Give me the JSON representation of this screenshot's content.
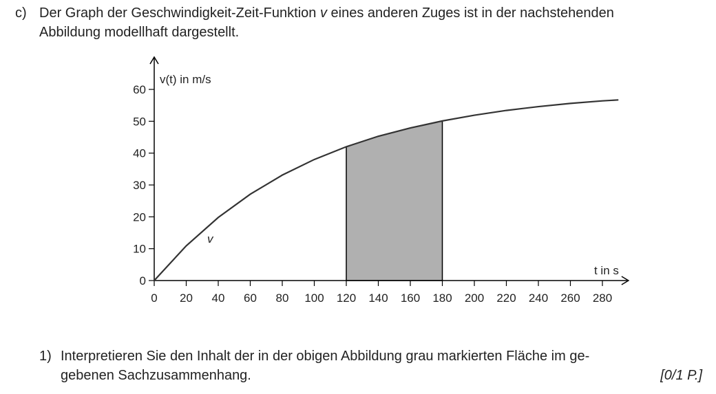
{
  "task": {
    "label": "c)",
    "intro_lines": [
      [
        "Der Graph der Geschwindigkeit-Zeit-Funktion ",
        "v",
        " eines anderen Zuges ist in der nachstehenden"
      ],
      [
        "Abbildung modellhaft dargestellt."
      ]
    ],
    "question": {
      "label": "1)",
      "lines": [
        "Interpretieren Sie den Inhalt der in der obigen Abbildung grau markierten Fläche im ge-",
        "gebenen Sachzusammenhang."
      ],
      "points": "[0/1 P.]"
    }
  },
  "chart_data": {
    "type": "line",
    "y_label": "v(t) in m/s",
    "x_label": "t in s",
    "curve_label": "v",
    "x": [
      0,
      20,
      40,
      60,
      80,
      100,
      120,
      140,
      160,
      180,
      200,
      220,
      240,
      260,
      280,
      290
    ],
    "series": [
      {
        "name": "v",
        "color": "#333333",
        "values": [
          0,
          10.9,
          19.8,
          27.1,
          33.1,
          38.0,
          42.0,
          45.3,
          47.9,
          50.1,
          51.9,
          53.4,
          54.6,
          55.6,
          56.4,
          56.7
        ]
      }
    ],
    "shaded": [
      120,
      180
    ],
    "shade_color": "#b0b0b0",
    "xlim": [
      0,
      292
    ],
    "ylim": [
      0,
      68
    ],
    "xticks": [
      0,
      20,
      40,
      60,
      80,
      100,
      120,
      140,
      160,
      180,
      200,
      220,
      240,
      260,
      280
    ],
    "yticks": [
      0,
      10,
      20,
      30,
      40,
      50,
      60
    ]
  }
}
